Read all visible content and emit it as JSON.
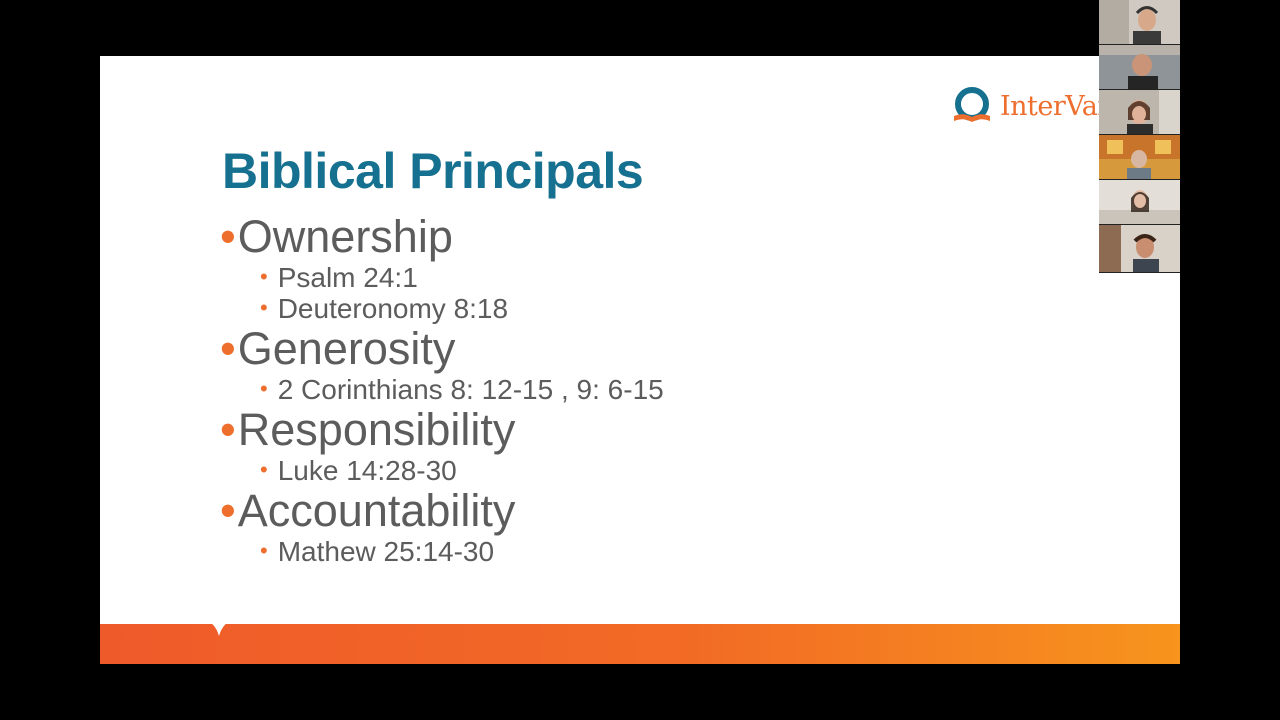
{
  "slide": {
    "title": "Biblical Principals",
    "logo_text": "InterVar",
    "bullets": [
      {
        "text": "Ownership",
        "subs": [
          "Psalm 24:1",
          "Deuteronomy 8:18"
        ]
      },
      {
        "text": "Generosity",
        "subs": [
          "2 Corinthians 8: 12-15 , 9: 6-15"
        ]
      },
      {
        "text": "Responsibility",
        "subs": [
          "Luke 14:28-30"
        ]
      },
      {
        "text": "Accountability",
        "subs": [
          "Mathew 25:14-30"
        ]
      }
    ]
  },
  "colors": {
    "title": "#16708f",
    "accent": "#ee6f2d",
    "body_text": "#5c5c5c",
    "background": "#000000"
  },
  "participants": [
    {
      "name": "participant-1"
    },
    {
      "name": "participant-2"
    },
    {
      "name": "participant-3"
    },
    {
      "name": "participant-4"
    },
    {
      "name": "participant-5"
    },
    {
      "name": "participant-6"
    }
  ]
}
